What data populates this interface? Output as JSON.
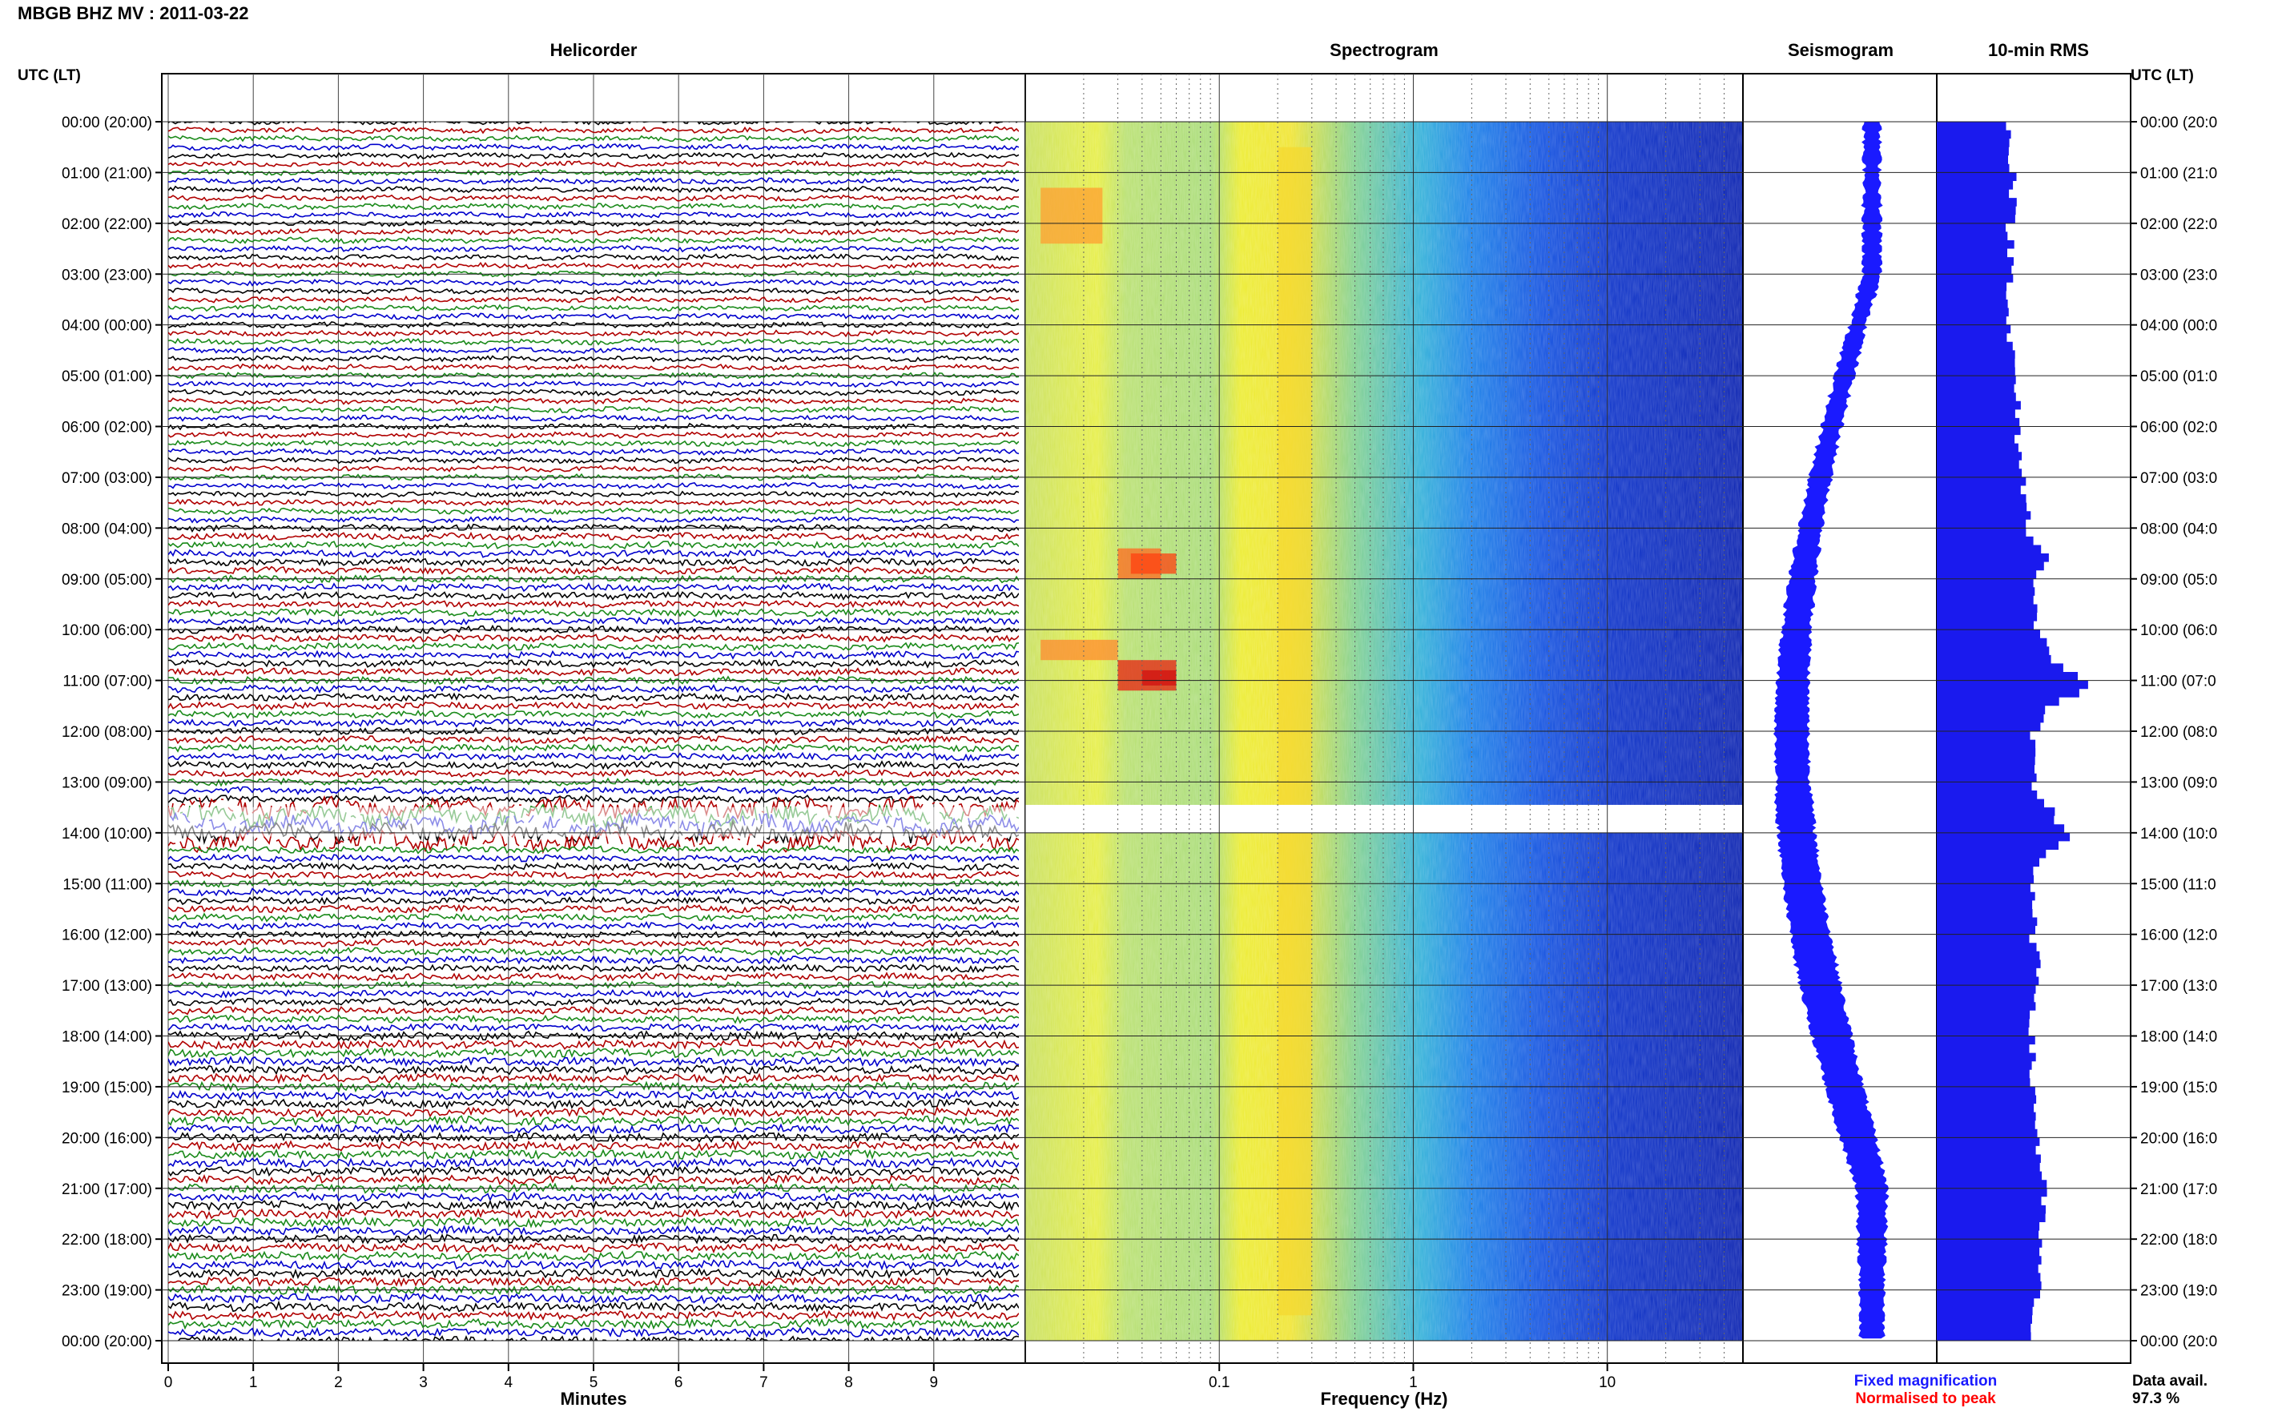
{
  "header": {
    "title": "MBGB BHZ MV : 2011-03-22",
    "time_axis_label_left": "UTC (LT)",
    "time_axis_label_right": "UTC (LT)"
  },
  "panels": {
    "helicorder": "Helicorder",
    "spectrogram": "Spectrogram",
    "seismogram": "Seismogram",
    "rms": "10-min RMS"
  },
  "axes": {
    "minutes_label": "Minutes",
    "minutes_ticks": [
      "0",
      "1",
      "2",
      "3",
      "4",
      "5",
      "6",
      "7",
      "8",
      "9"
    ],
    "frequency_label": "Frequency (Hz)",
    "frequency_ticks": [
      "0.1",
      "1",
      "10"
    ]
  },
  "hour_labels": [
    "00:00 (20:00)",
    "01:00 (21:00)",
    "02:00 (22:00)",
    "03:00 (23:00)",
    "04:00 (00:00)",
    "05:00 (01:00)",
    "06:00 (02:00)",
    "07:00 (03:00)",
    "08:00 (04:00)",
    "09:00 (05:00)",
    "10:00 (06:00)",
    "11:00 (07:00)",
    "12:00 (08:00)",
    "13:00 (09:00)",
    "14:00 (10:00)",
    "15:00 (11:00)",
    "16:00 (12:00)",
    "17:00 (13:00)",
    "18:00 (14:00)",
    "19:00 (15:00)",
    "20:00 (16:00)",
    "21:00 (17:00)",
    "22:00 (18:00)",
    "23:00 (19:00)",
    "00:00 (20:00)"
  ],
  "hour_labels_right": [
    "00:00 (20:0",
    "01:00 (21:0",
    "02:00 (22:0",
    "03:00 (23:0",
    "04:00 (00:0",
    "05:00 (01:0",
    "06:00 (02:0",
    "07:00 (03:0",
    "08:00 (04:0",
    "09:00 (05:0",
    "10:00 (06:0",
    "11:00 (07:0",
    "12:00 (08:0",
    "13:00 (09:0",
    "14:00 (10:0",
    "15:00 (11:0",
    "16:00 (12:0",
    "17:00 (13:0",
    "18:00 (14:0",
    "19:00 (15:0",
    "20:00 (16:0",
    "21:00 (17:0",
    "22:00 (18:0",
    "23:00 (19:0",
    "00:00 (20:0"
  ],
  "legend": {
    "fixed": "Fixed magnification",
    "normalised": "Normalised to peak",
    "data_avail_label": "Data avail.",
    "data_avail_value": "97.3 %"
  },
  "colors": {
    "trace_cycle": [
      "#000000",
      "#b00000",
      "#1a8a1a",
      "#0000cc"
    ],
    "seismogram": "#1a1aff",
    "rms": "#1a1aee",
    "fixed_legend": "#1a1aff",
    "normalised_legend": "#ff0000",
    "grid": "#333333"
  },
  "chart_data": {
    "type": "heatmap",
    "time_range_hours": [
      0,
      24
    ],
    "helicorder": {
      "line_minutes": 10,
      "minutes_range": [
        0,
        10
      ],
      "gap_hours": [
        13.4,
        14.2
      ],
      "noisy_hours": [
        13.4,
        14.2
      ]
    },
    "spectrogram": {
      "frequency_range_hz": [
        0.01,
        50
      ],
      "log_scale": true,
      "gap_hours": [
        13.45,
        14.0
      ]
    },
    "seismogram": {
      "hours": [
        0,
        2,
        4,
        6,
        8,
        10,
        12,
        13.2,
        14.0,
        15.5,
        16.5,
        18,
        20,
        22,
        24
      ],
      "relative_width": [
        0.25,
        0.3,
        0.3,
        0.35,
        0.45,
        0.6,
        0.7,
        0.75,
        0.8,
        0.85,
        0.9,
        0.85,
        0.75,
        0.55,
        0.45
      ]
    },
    "rms_10min": {
      "hours": [
        0,
        1,
        2,
        3,
        4,
        5,
        6,
        7,
        8,
        8.5,
        9,
        10,
        10.5,
        11,
        11.5,
        12,
        13,
        14,
        14.5,
        15,
        16,
        17,
        18,
        19,
        20,
        21,
        22,
        23,
        24
      ],
      "relative": [
        0.45,
        0.5,
        0.47,
        0.48,
        0.46,
        0.5,
        0.52,
        0.55,
        0.6,
        0.72,
        0.6,
        0.65,
        0.75,
        0.98,
        0.7,
        0.6,
        0.62,
        0.85,
        0.65,
        0.6,
        0.62,
        0.65,
        0.6,
        0.62,
        0.65,
        0.68,
        0.66,
        0.64,
        0.6
      ]
    }
  }
}
